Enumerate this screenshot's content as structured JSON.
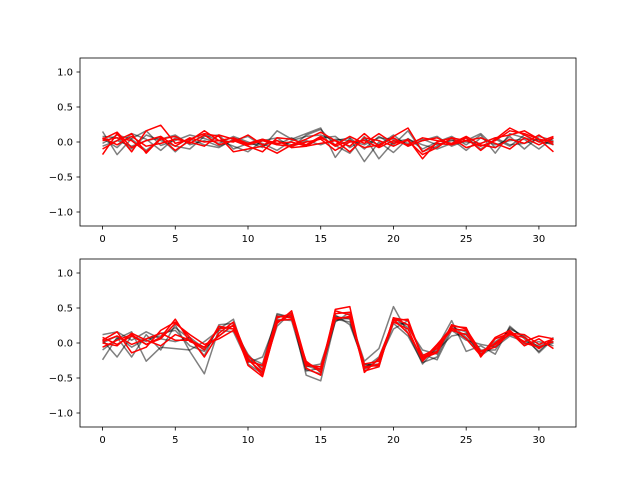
{
  "colors": {
    "background": "#ffffff",
    "gray_series": "rgba(0,0,0,0.5)",
    "red_series": "#ff0000",
    "axes": "#000000"
  },
  "chart_data": [
    {
      "type": "line",
      "title": "",
      "xlabel": "",
      "ylabel": "",
      "xlim": [
        -1.55,
        32.55
      ],
      "ylim": [
        -1.2,
        1.2
      ],
      "x_ticks": [
        0,
        5,
        10,
        15,
        20,
        25,
        30
      ],
      "y_ticks": [
        -1.0,
        -0.5,
        0.0,
        0.5,
        1.0
      ],
      "x_tick_labels": [
        "0",
        "5",
        "10",
        "15",
        "20",
        "25",
        "30"
      ],
      "y_tick_labels": [
        "−1.0",
        "−0.5",
        "0.0",
        "0.5",
        "1.0"
      ],
      "grid": false,
      "x": [
        0,
        1,
        2,
        3,
        4,
        5,
        6,
        7,
        8,
        9,
        10,
        11,
        12,
        13,
        14,
        15,
        16,
        17,
        18,
        19,
        20,
        21,
        22,
        23,
        24,
        25,
        26,
        27,
        28,
        29,
        30,
        31
      ],
      "series": [
        {
          "color": "gray",
          "values": [
            0.15,
            -0.18,
            0.05,
            0.16,
            -0.05,
            0.02,
            0.1,
            0.05,
            -0.02,
            0.08,
            0.0,
            -0.08,
            0.16,
            0.04,
            0.12,
            0.2,
            -0.22,
            0.05,
            -0.28,
            0.0,
            -0.15,
            0.05,
            -0.1,
            0.0,
            0.08,
            -0.04,
            0.1,
            -0.16,
            0.12,
            0.06,
            0.02,
            -0.04
          ]
        },
        {
          "color": "gray",
          "values": [
            0.05,
            -0.08,
            0.12,
            0.04,
            -0.12,
            0.06,
            -0.02,
            0.1,
            0.02,
            -0.06,
            -0.14,
            0.02,
            0.06,
            -0.08,
            0.1,
            0.18,
            -0.05,
            -0.16,
            0.08,
            -0.24,
            0.0,
            0.04,
            -0.04,
            -0.1,
            -0.02,
            0.06,
            -0.1,
            0.04,
            -0.06,
            0.1,
            0.0,
            -0.02
          ]
        },
        {
          "color": "gray",
          "values": [
            -0.06,
            0.02,
            -0.06,
            0.02,
            0.06,
            -0.14,
            0.04,
            -0.04,
            -0.08,
            0.04,
            -0.04,
            -0.02,
            -0.12,
            0.02,
            0.08,
            0.1,
            0.02,
            0.06,
            -0.1,
            0.08,
            -0.04,
            0.16,
            -0.14,
            -0.06,
            0.04,
            -0.12,
            0.06,
            -0.04,
            0.02,
            0.04,
            -0.1,
            0.06
          ]
        },
        {
          "color": "gray",
          "values": [
            0.08,
            0.06,
            -0.1,
            0.1,
            0.02,
            -0.06,
            -0.1,
            0.08,
            0.1,
            -0.1,
            -0.02,
            0.04,
            -0.04,
            0.06,
            -0.06,
            0.06,
            0.08,
            -0.08,
            0.04,
            -0.04,
            0.1,
            -0.06,
            0.02,
            0.08,
            -0.06,
            0.02,
            0.12,
            -0.08,
            0.08,
            -0.1,
            0.08,
            0.02
          ]
        },
        {
          "color": "gray",
          "values": [
            -0.02,
            0.1,
            0.04,
            -0.12,
            0.04,
            0.1,
            -0.04,
            0.02,
            -0.06,
            0.02,
            0.08,
            -0.06,
            0.02,
            -0.04,
            0.02,
            -0.04,
            0.04,
            0.02,
            -0.04,
            0.06,
            0.04,
            -0.02,
            0.04,
            -0.04,
            0.02,
            0.0,
            -0.02,
            0.06,
            -0.04,
            -0.02,
            0.04,
            0.0
          ]
        },
        {
          "color": "red",
          "values": [
            -0.18,
            0.12,
            -0.14,
            0.16,
            0.24,
            -0.02,
            0.04,
            0.12,
            0.08,
            -0.14,
            -0.1,
            -0.06,
            -0.16,
            -0.04,
            0.04,
            0.14,
            0.02,
            -0.14,
            0.06,
            0.02,
            -0.06,
            0.04,
            -0.24,
            0.0,
            0.06,
            0.02,
            -0.06,
            0.02,
            0.16,
            0.12,
            0.04,
            0.0
          ]
        },
        {
          "color": "red",
          "values": [
            0.04,
            0.14,
            -0.08,
            0.02,
            0.08,
            -0.06,
            0.06,
            0.0,
            0.02,
            0.06,
            -0.02,
            0.04,
            -0.02,
            0.0,
            -0.06,
            0.06,
            -0.04,
            0.08,
            -0.02,
            0.12,
            -0.02,
            0.02,
            -0.18,
            -0.08,
            0.06,
            -0.08,
            -0.02,
            0.06,
            0.1,
            0.16,
            0.04,
            -0.14
          ]
        },
        {
          "color": "red",
          "values": [
            -0.1,
            0.02,
            0.12,
            -0.16,
            0.06,
            -0.12,
            0.02,
            0.16,
            0.02,
            0.0,
            0.1,
            -0.04,
            0.02,
            -0.08,
            -0.06,
            -0.02,
            0.02,
            -0.06,
            0.12,
            -0.06,
            0.08,
            0.2,
            -0.14,
            -0.02,
            -0.04,
            0.06,
            -0.12,
            0.04,
            0.2,
            0.1,
            0.0,
            0.08
          ]
        },
        {
          "color": "red",
          "values": [
            0.02,
            0.06,
            0.02,
            -0.14,
            0.04,
            0.08,
            -0.02,
            0.1,
            -0.04,
            0.02,
            -0.06,
            -0.14,
            0.06,
            0.04,
            -0.04,
            0.08,
            -0.06,
            0.02,
            -0.08,
            -0.04,
            0.06,
            -0.06,
            0.02,
            0.06,
            -0.04,
            0.02,
            0.06,
            -0.02,
            -0.1,
            0.06,
            -0.04,
            0.06
          ]
        },
        {
          "color": "red",
          "values": [
            0.06,
            -0.04,
            0.08,
            -0.06,
            -0.02,
            0.04,
            0.0,
            -0.06,
            0.1,
            0.04,
            -0.04,
            0.02,
            -0.04,
            -0.06,
            0.0,
            0.04,
            -0.12,
            0.0,
            0.02,
            -0.08,
            0.02,
            -0.04,
            0.06,
            0.02,
            -0.02,
            0.08,
            -0.04,
            -0.08,
            0.04,
            -0.02,
            0.1,
            -0.04
          ]
        }
      ]
    },
    {
      "type": "line",
      "title": "",
      "xlabel": "",
      "ylabel": "",
      "xlim": [
        -1.55,
        32.55
      ],
      "ylim": [
        -1.2,
        1.2
      ],
      "x_ticks": [
        0,
        5,
        10,
        15,
        20,
        25,
        30
      ],
      "y_ticks": [
        -1.0,
        -0.5,
        0.0,
        0.5,
        1.0
      ],
      "x_tick_labels": [
        "0",
        "5",
        "10",
        "15",
        "20",
        "25",
        "30"
      ],
      "y_tick_labels": [
        "−1.0",
        "−0.5",
        "0.0",
        "0.5",
        "1.0"
      ],
      "grid": false,
      "x": [
        0,
        1,
        2,
        3,
        4,
        5,
        6,
        7,
        8,
        9,
        10,
        11,
        12,
        13,
        14,
        15,
        16,
        17,
        18,
        19,
        20,
        21,
        22,
        23,
        24,
        25,
        26,
        27,
        28,
        29,
        30,
        31
      ],
      "series": [
        {
          "color": "gray",
          "values": [
            -0.24,
            0.08,
            -0.2,
            0.12,
            -0.1,
            0.26,
            -0.12,
            -0.44,
            0.2,
            0.34,
            -0.3,
            -0.44,
            0.3,
            0.4,
            -0.46,
            -0.54,
            0.32,
            0.36,
            -0.26,
            -0.08,
            0.52,
            0.14,
            -0.3,
            -0.06,
            0.32,
            -0.12,
            -0.04,
            -0.16,
            0.24,
            0.06,
            -0.12,
            0.08
          ]
        },
        {
          "color": "gray",
          "values": [
            0.12,
            0.16,
            0.04,
            0.16,
            0.06,
            0.02,
            0.08,
            -0.08,
            0.1,
            0.26,
            -0.22,
            -0.34,
            0.4,
            0.38,
            -0.38,
            -0.44,
            0.38,
            0.34,
            -0.36,
            -0.2,
            0.3,
            0.26,
            -0.16,
            -0.24,
            0.18,
            0.04,
            -0.02,
            -0.06,
            0.1,
            0.02,
            -0.04,
            0.02
          ]
        },
        {
          "color": "gray",
          "values": [
            -0.1,
            0.06,
            0.16,
            -0.26,
            -0.06,
            -0.08,
            -0.1,
            0.02,
            0.18,
            0.16,
            -0.28,
            -0.2,
            0.34,
            0.32,
            -0.4,
            -0.36,
            0.4,
            0.26,
            -0.3,
            -0.34,
            0.36,
            0.22,
            -0.1,
            -0.16,
            0.26,
            0.08,
            -0.14,
            0.02,
            0.16,
            -0.02,
            0.02,
            -0.04
          ]
        },
        {
          "color": "gray",
          "values": [
            0.04,
            -0.2,
            0.1,
            0.02,
            0.14,
            0.18,
            -0.04,
            -0.12,
            0.22,
            0.2,
            -0.16,
            -0.4,
            0.24,
            0.44,
            -0.32,
            -0.4,
            0.3,
            0.44,
            -0.38,
            -0.24,
            0.2,
            0.32,
            -0.22,
            -0.1,
            0.1,
            0.14,
            -0.18,
            -0.04,
            0.2,
            0.1,
            -0.14,
            0.06
          ]
        },
        {
          "color": "gray",
          "values": [
            0.0,
            0.1,
            -0.06,
            0.06,
            0.1,
            0.22,
            0.06,
            -0.18,
            0.26,
            0.28,
            -0.2,
            -0.3,
            0.42,
            0.36,
            -0.34,
            -0.3,
            0.34,
            0.3,
            -0.32,
            -0.3,
            0.28,
            0.1,
            -0.28,
            -0.2,
            0.22,
            0.16,
            -0.1,
            -0.1,
            0.22,
            0.08,
            -0.06,
            0.0
          ]
        },
        {
          "color": "red",
          "values": [
            0.04,
            0.16,
            -0.14,
            -0.06,
            0.18,
            0.3,
            0.08,
            -0.2,
            0.14,
            0.3,
            -0.22,
            -0.46,
            0.28,
            0.46,
            -0.28,
            -0.38,
            0.46,
            0.4,
            -0.4,
            -0.34,
            0.36,
            0.32,
            -0.2,
            -0.12,
            0.24,
            0.22,
            -0.2,
            0.06,
            0.14,
            0.02,
            0.1,
            0.06
          ]
        },
        {
          "color": "red",
          "values": [
            -0.06,
            0.04,
            0.12,
            -0.02,
            0.08,
            0.34,
            0.02,
            -0.06,
            0.2,
            0.24,
            -0.32,
            -0.48,
            0.3,
            0.4,
            -0.36,
            -0.46,
            0.48,
            0.52,
            -0.42,
            -0.22,
            0.32,
            0.34,
            -0.24,
            -0.02,
            0.22,
            0.06,
            -0.18,
            0.08,
            0.18,
            0.0,
            -0.06,
            0.02
          ]
        },
        {
          "color": "red",
          "values": [
            0.0,
            -0.04,
            0.14,
            0.04,
            -0.04,
            0.12,
            0.04,
            -0.1,
            0.24,
            0.2,
            -0.26,
            -0.32,
            0.36,
            0.42,
            -0.3,
            -0.38,
            0.42,
            0.44,
            -0.36,
            -0.3,
            0.3,
            0.2,
            -0.26,
            -0.04,
            0.18,
            0.12,
            -0.12,
            -0.02,
            0.12,
            0.08,
            -0.08,
            0.06
          ]
        },
        {
          "color": "red",
          "values": [
            0.08,
            -0.02,
            0.1,
            -0.02,
            0.06,
            0.28,
            0.12,
            -0.02,
            0.06,
            0.18,
            -0.18,
            -0.38,
            0.32,
            0.34,
            -0.26,
            -0.42,
            0.36,
            0.36,
            -0.34,
            -0.32,
            0.36,
            0.26,
            -0.18,
            -0.08,
            0.2,
            0.18,
            -0.16,
            0.0,
            0.16,
            -0.04,
            0.06,
            -0.08
          ]
        },
        {
          "color": "red",
          "values": [
            0.02,
            0.1,
            -0.02,
            0.06,
            0.14,
            0.04,
            0.04,
            -0.06,
            0.1,
            0.26,
            -0.24,
            -0.42,
            0.38,
            0.36,
            -0.32,
            -0.34,
            0.34,
            0.38,
            -0.3,
            -0.26,
            0.34,
            0.14,
            -0.22,
            -0.14,
            0.26,
            0.2,
            -0.12,
            -0.06,
            0.14,
            0.12,
            -0.02,
            0.06
          ]
        }
      ]
    }
  ]
}
